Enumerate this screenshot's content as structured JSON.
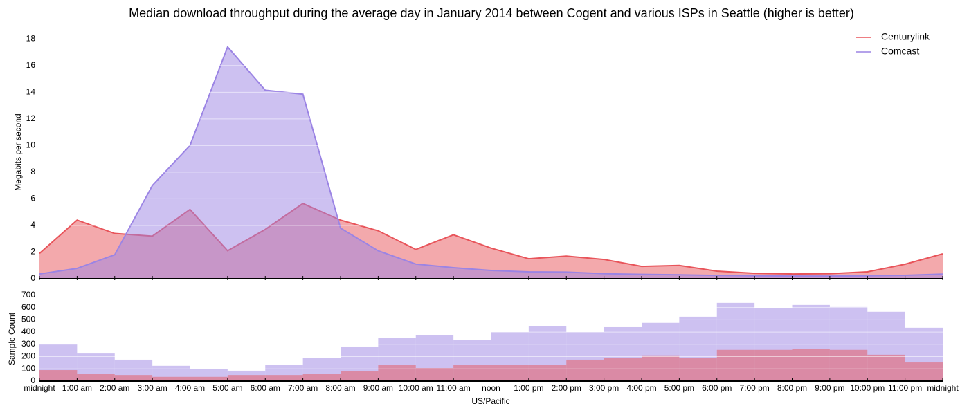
{
  "chart_data": [
    {
      "type": "area",
      "title": "Median download throughput during the average day in January 2014 between Cogent and various ISPs in Seattle (higher is better)",
      "ylabel": "Megabits per second",
      "x": [
        0,
        1,
        2,
        3,
        4,
        5,
        6,
        7,
        8,
        9,
        10,
        11,
        12,
        13,
        14,
        15,
        16,
        17,
        18,
        19,
        20,
        21,
        22,
        23,
        24
      ],
      "xlim": [
        0,
        24
      ],
      "ylim": [
        0,
        19
      ],
      "yticks": [
        0,
        2,
        4,
        6,
        8,
        10,
        12,
        14,
        16,
        18
      ],
      "grid": true,
      "legend": "upper right",
      "series": [
        {
          "name": "Centurylink",
          "color": "#e8545a",
          "values": [
            1.9,
            4.4,
            3.4,
            3.2,
            5.2,
            2.1,
            3.7,
            5.65,
            4.4,
            3.6,
            2.2,
            3.3,
            2.3,
            1.5,
            1.7,
            1.45,
            0.93,
            1.0,
            0.57,
            0.41,
            0.36,
            0.38,
            0.52,
            1.09,
            1.87
          ]
        },
        {
          "name": "Comcast",
          "color": "#9b84e4",
          "values": [
            0.36,
            0.78,
            1.8,
            7.0,
            10.0,
            17.4,
            14.15,
            13.85,
            3.8,
            2.1,
            1.1,
            0.83,
            0.62,
            0.52,
            0.5,
            0.38,
            0.33,
            0.3,
            0.25,
            0.22,
            0.2,
            0.2,
            0.22,
            0.26,
            0.35
          ]
        }
      ]
    },
    {
      "type": "histogram",
      "ylabel": "Sample Count",
      "xlabel": "US/Pacific",
      "bins": [
        0,
        1,
        2,
        3,
        4,
        5,
        6,
        7,
        8,
        9,
        10,
        11,
        12,
        13,
        14,
        15,
        16,
        17,
        18,
        19,
        20,
        21,
        22,
        23,
        24
      ],
      "xlim": [
        0,
        24
      ],
      "xticks": [
        {
          "value": 0,
          "label": "midnight"
        },
        {
          "value": 1,
          "label": "1:00 am"
        },
        {
          "value": 2,
          "label": "2:00 am"
        },
        {
          "value": 3,
          "label": "3:00 am"
        },
        {
          "value": 4,
          "label": "4:00 am"
        },
        {
          "value": 5,
          "label": "5:00 am"
        },
        {
          "value": 6,
          "label": "6:00 am"
        },
        {
          "value": 7,
          "label": "7:00 am"
        },
        {
          "value": 8,
          "label": "8:00 am"
        },
        {
          "value": 9,
          "label": "9:00 am"
        },
        {
          "value": 10,
          "label": "10:00 am"
        },
        {
          "value": 11,
          "label": "11:00 am"
        },
        {
          "value": 12,
          "label": "noon"
        },
        {
          "value": 13,
          "label": "1:00 pm"
        },
        {
          "value": 14,
          "label": "2:00 pm"
        },
        {
          "value": 15,
          "label": "3:00 pm"
        },
        {
          "value": 16,
          "label": "4:00 pm"
        },
        {
          "value": 17,
          "label": "5:00 pm"
        },
        {
          "value": 18,
          "label": "6:00 pm"
        },
        {
          "value": 19,
          "label": "7:00 pm"
        },
        {
          "value": 20,
          "label": "8:00 pm"
        },
        {
          "value": 21,
          "label": "9:00 pm"
        },
        {
          "value": 22,
          "label": "10:00 pm"
        },
        {
          "value": 23,
          "label": "11:00 pm"
        },
        {
          "value": 24,
          "label": "midnight"
        }
      ],
      "ylim": [
        0,
        750
      ],
      "yticks": [
        0,
        100,
        200,
        300,
        400,
        500,
        600,
        700
      ],
      "grid": true,
      "series": [
        {
          "color": "#9b84e4",
          "values": [
            300,
            225,
            175,
            125,
            100,
            85,
            130,
            190,
            282,
            350,
            373,
            333,
            400,
            446,
            400,
            440,
            475,
            525,
            638,
            593,
            621,
            604,
            565,
            435
          ]
        },
        {
          "color": "#e8545a",
          "values": [
            90,
            62,
            50,
            35,
            35,
            50,
            50,
            60,
            80,
            130,
            107,
            135,
            130,
            135,
            175,
            188,
            210,
            188,
            255,
            255,
            260,
            255,
            215,
            152
          ]
        }
      ]
    }
  ]
}
